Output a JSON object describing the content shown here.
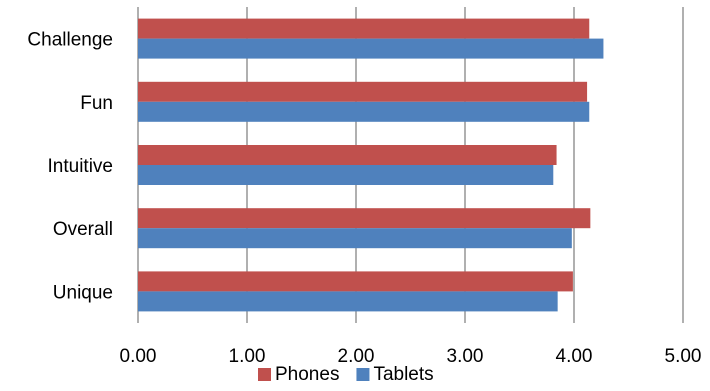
{
  "chart_data": {
    "type": "bar",
    "orientation": "horizontal",
    "categories": [
      "Challenge",
      "Fun",
      "Intuitive",
      "Overall",
      "Unique"
    ],
    "series": [
      {
        "name": "Phones",
        "color": "#C0504D",
        "values": [
          4.14,
          4.12,
          3.84,
          4.15,
          3.99
        ]
      },
      {
        "name": "Tablets",
        "color": "#4F81BD",
        "values": [
          4.27,
          4.14,
          3.81,
          3.98,
          3.85
        ]
      }
    ],
    "xlim": [
      0,
      5
    ],
    "xticks": [
      "0.00",
      "1.00",
      "2.00",
      "3.00",
      "4.00",
      "5.00"
    ],
    "grid": "vertical major gridlines",
    "legend": "bottom",
    "title": "",
    "xlabel": "",
    "ylabel": ""
  }
}
